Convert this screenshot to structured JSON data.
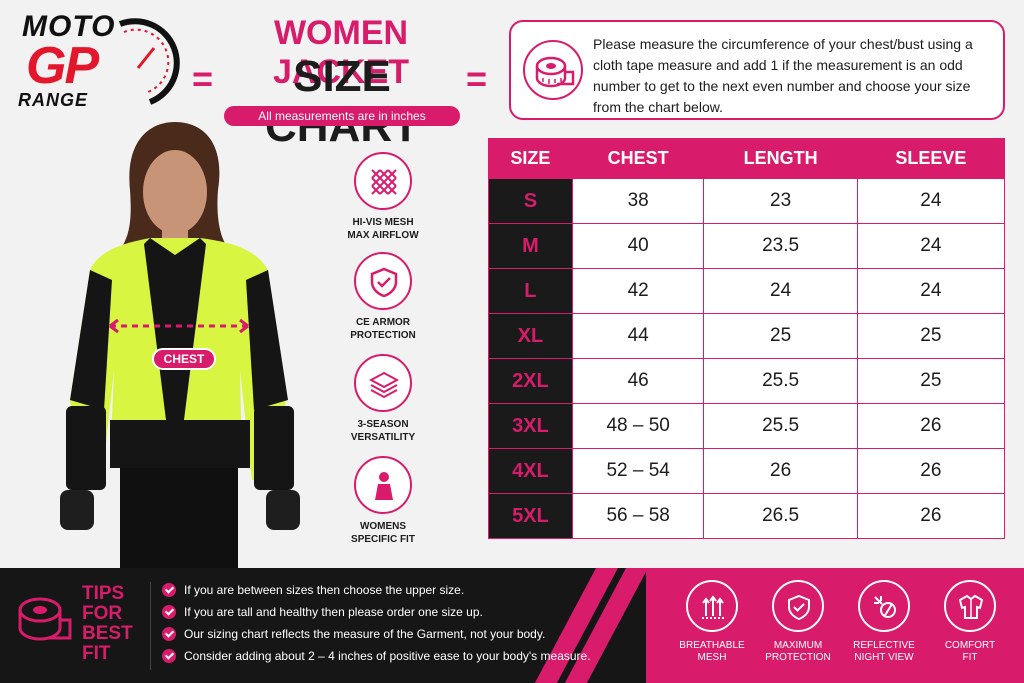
{
  "brand": {
    "line1": "MOTO",
    "line2": "GP",
    "line3": "RANGE"
  },
  "title": {
    "top": "WOMEN JACKET",
    "main": "SIZE CHART",
    "subtitle": "All measurements are in inches"
  },
  "instructions": "Please measure the circumference of your chest/bust using a cloth tape measure and add 1 if the measurement is an odd number to get to the next even number and choose your size from the chart below.",
  "model": {
    "chest_label": "CHEST"
  },
  "features": [
    {
      "icon": "mesh-icon",
      "label": "HI-VIS MESH MAX AIRFLOW"
    },
    {
      "icon": "shield-check-icon",
      "label": "CE ARMOR PROTECTION"
    },
    {
      "icon": "layers-icon",
      "label": "3-SEASON VERSATILITY"
    },
    {
      "icon": "woman-figure-icon",
      "label": "WOMENS SPECIFIC FIT"
    }
  ],
  "table": {
    "headers": [
      "SIZE",
      "CHEST",
      "LENGTH",
      "SLEEVE"
    ],
    "rows": [
      [
        "S",
        "38",
        "23",
        "24"
      ],
      [
        "M",
        "40",
        "23.5",
        "24"
      ],
      [
        "L",
        "42",
        "24",
        "24"
      ],
      [
        "XL",
        "44",
        "25",
        "25"
      ],
      [
        "2XL",
        "46",
        "25.5",
        "25"
      ],
      [
        "3XL",
        "48 – 50",
        "25.5",
        "26"
      ],
      [
        "4XL",
        "52 – 54",
        "26",
        "26"
      ],
      [
        "5XL",
        "56 – 58",
        "26.5",
        "26"
      ]
    ]
  },
  "tips": {
    "title": [
      "TIPS",
      "FOR",
      "BEST",
      "FIT"
    ],
    "items": [
      "If you are between sizes then choose the upper size.",
      "If you are tall and healthy then please order one size up.",
      "Our sizing chart reflects the measure of the Garment, not your body.",
      "Consider adding about 2 – 4 inches of positive ease to your body's measure."
    ]
  },
  "bottom_features": [
    {
      "icon": "breathable-arrows-icon",
      "label": [
        "BREATHABLE",
        "MESH"
      ]
    },
    {
      "icon": "shield-check-icon",
      "label": [
        "MAXIMUM",
        "PROTECTION"
      ]
    },
    {
      "icon": "reflective-icon",
      "label": [
        "REFLECTIVE",
        "NIGHT VIEW"
      ]
    },
    {
      "icon": "jacket-icon",
      "label": [
        "COMFORT",
        "FIT"
      ]
    }
  ],
  "colors": {
    "accent": "#d81b6a",
    "dark": "#161616",
    "hivis": "#d8f542"
  }
}
